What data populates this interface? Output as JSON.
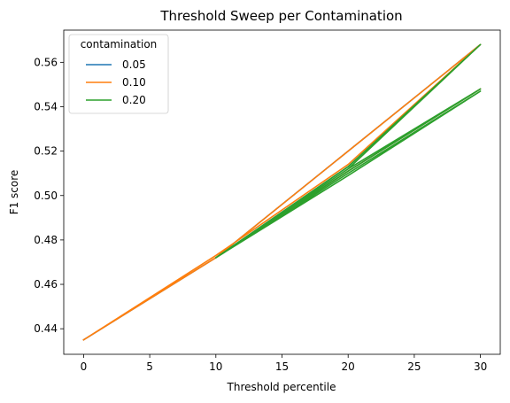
{
  "chart_data": {
    "type": "line",
    "title": "Threshold Sweep per Contamination",
    "xlabel": "Threshold percentile",
    "ylabel": "F1 score",
    "xlim": [
      -1.5,
      31.5
    ],
    "ylim": [
      0.4285,
      0.5745
    ],
    "xticks": [
      0,
      5,
      10,
      15,
      20,
      25,
      30
    ],
    "yticks": [
      0.44,
      0.46,
      0.48,
      0.5,
      0.52,
      0.54,
      0.56
    ],
    "ytick_labels": [
      "0.44",
      "0.46",
      "0.48",
      "0.50",
      "0.52",
      "0.54",
      "0.56"
    ],
    "grid": false,
    "legend": {
      "title": "contamination",
      "placement": "top-left"
    },
    "series": [
      {
        "name": "0.05",
        "color": "#1f77b4",
        "points": [
          [
            0,
            0.435
          ],
          [
            10,
            0.472
          ],
          [
            20,
            0.513
          ],
          [
            30,
            0.568
          ],
          [
            10,
            0.472
          ],
          [
            20,
            0.511
          ],
          [
            30,
            0.548
          ],
          [
            20,
            0.511
          ],
          [
            10,
            0.472
          ],
          [
            0,
            0.435
          ]
        ]
      },
      {
        "name": "0.10",
        "color": "#ff7f0e",
        "points": [
          [
            0,
            0.435
          ],
          [
            10,
            0.473
          ],
          [
            20,
            0.514
          ],
          [
            30,
            0.568
          ],
          [
            10,
            0.472
          ],
          [
            20,
            0.511
          ],
          [
            30,
            0.548
          ],
          [
            20,
            0.511
          ],
          [
            10,
            0.472
          ],
          [
            0,
            0.435
          ]
        ]
      },
      {
        "name": "0.20",
        "color": "#2ca02c",
        "points": [
          [
            10,
            0.472
          ],
          [
            20,
            0.513
          ],
          [
            30,
            0.568
          ],
          [
            20,
            0.512
          ],
          [
            10,
            0.472
          ],
          [
            20,
            0.511
          ],
          [
            30,
            0.548
          ],
          [
            25,
            0.53
          ],
          [
            20,
            0.512
          ],
          [
            10,
            0.472
          ],
          [
            20,
            0.509
          ],
          [
            30,
            0.547
          ],
          [
            20,
            0.51
          ],
          [
            10,
            0.472
          ]
        ]
      }
    ]
  }
}
